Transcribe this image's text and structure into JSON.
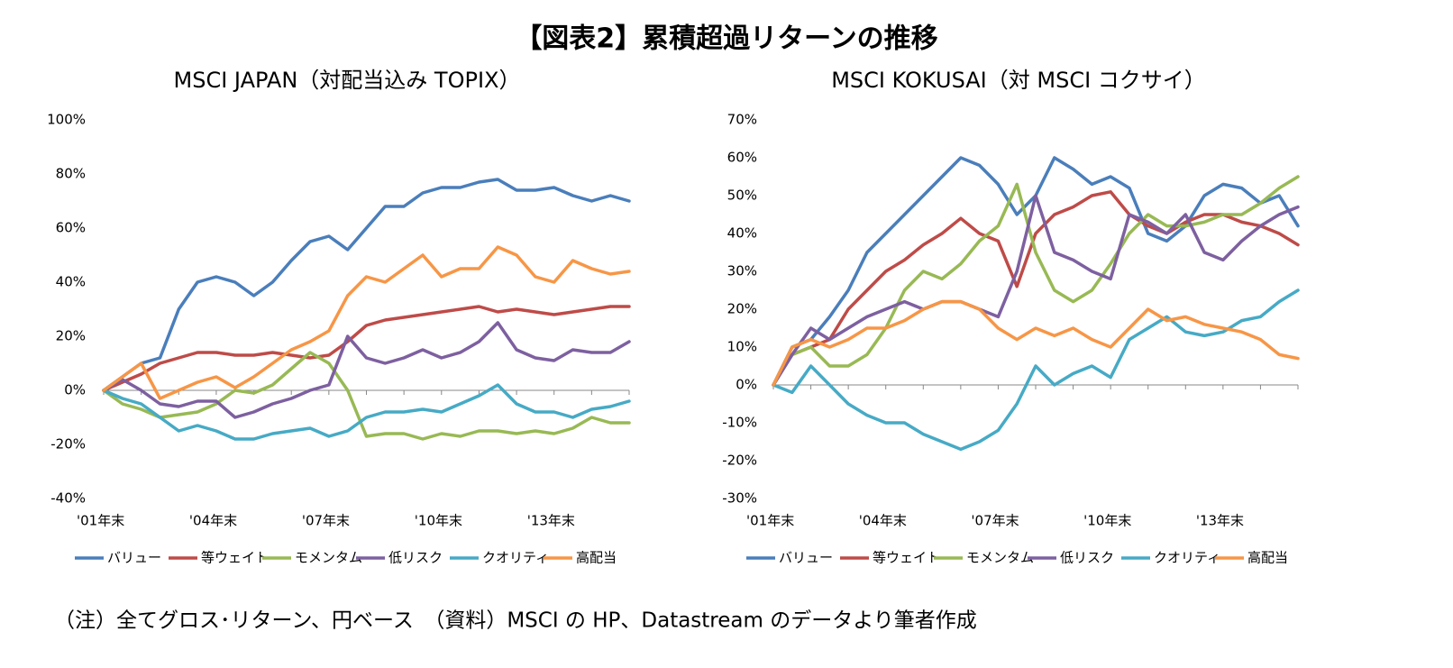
{
  "title": "【図表2】累積超過リターンの推移",
  "note": "（注）全てグロス･リターン、円ベース　（資料）MSCI の HP、Datastream のデータより筆者作成",
  "chart_data": [
    {
      "type": "line",
      "title": "MSCI JAPAN（対配当込み TOPIX）",
      "categories": [
        "'01年末",
        null,
        null,
        null,
        null,
        null,
        "'04年末",
        null,
        null,
        null,
        null,
        null,
        "'07年末",
        null,
        null,
        null,
        null,
        null,
        "'10年末",
        null,
        null,
        null,
        null,
        null,
        "'13年末",
        null,
        null,
        null,
        null
      ],
      "ylim": [
        -40,
        100
      ],
      "yticks": [
        {
          "value": -40,
          "label": "-40%"
        },
        {
          "value": -20,
          "label": "-20%"
        },
        {
          "value": 0,
          "label": "0%"
        },
        {
          "value": 20,
          "label": "20%"
        },
        {
          "value": 40,
          "label": "40%"
        },
        {
          "value": 60,
          "label": "60%"
        },
        {
          "value": 80,
          "label": "80%"
        },
        {
          "value": 100,
          "label": "100%"
        }
      ],
      "series": [
        {
          "name": "バリュー",
          "color": "#4a7ebb",
          "values": [
            0,
            5,
            10,
            12,
            30,
            40,
            42,
            40,
            35,
            40,
            48,
            55,
            57,
            52,
            60,
            68,
            68,
            73,
            75,
            75,
            77,
            78,
            74,
            74,
            75,
            72,
            70,
            72,
            70
          ]
        },
        {
          "name": "等ウェイト",
          "color": "#be4b48",
          "values": [
            0,
            3,
            6,
            10,
            12,
            14,
            14,
            13,
            13,
            14,
            13,
            12,
            13,
            18,
            24,
            26,
            27,
            28,
            29,
            30,
            31,
            29,
            30,
            29,
            28,
            29,
            30,
            31,
            31
          ]
        },
        {
          "name": "モメンタム",
          "color": "#98b954",
          "values": [
            0,
            -5,
            -7,
            -10,
            -9,
            -8,
            -5,
            0,
            -1,
            2,
            8,
            14,
            10,
            0,
            -17,
            -16,
            -16,
            -18,
            -16,
            -17,
            -15,
            -15,
            -16,
            -15,
            -16,
            -14,
            -10,
            -12,
            -12
          ]
        },
        {
          "name": "低リスク",
          "color": "#7d60a0",
          "values": [
            0,
            4,
            0,
            -5,
            -6,
            -4,
            -4,
            -10,
            -8,
            -5,
            -3,
            0,
            2,
            20,
            12,
            10,
            12,
            15,
            12,
            14,
            18,
            25,
            15,
            12,
            11,
            15,
            14,
            14,
            18
          ]
        },
        {
          "name": "クオリティ",
          "color": "#46aac5",
          "values": [
            0,
            -3,
            -5,
            -10,
            -15,
            -13,
            -15,
            -18,
            -18,
            -16,
            -15,
            -14,
            -17,
            -15,
            -10,
            -8,
            -8,
            -7,
            -8,
            -5,
            -2,
            2,
            -5,
            -8,
            -8,
            -10,
            -7,
            -6,
            -4
          ]
        },
        {
          "name": "高配当",
          "color": "#f79646",
          "values": [
            0,
            5,
            10,
            -3,
            0,
            3,
            5,
            1,
            5,
            10,
            15,
            18,
            22,
            35,
            42,
            40,
            45,
            50,
            42,
            45,
            45,
            53,
            50,
            42,
            40,
            48,
            45,
            43,
            44
          ]
        }
      ]
    },
    {
      "type": "line",
      "title": "MSCI KOKUSAI（対 MSCI コクサイ）",
      "categories": [
        "'01年末",
        null,
        null,
        null,
        null,
        null,
        "'04年末",
        null,
        null,
        null,
        null,
        null,
        "'07年末",
        null,
        null,
        null,
        null,
        null,
        "'10年末",
        null,
        null,
        null,
        null,
        null,
        "'13年末",
        null,
        null,
        null,
        null
      ],
      "ylim": [
        -30,
        70
      ],
      "yticks": [
        {
          "value": -30,
          "label": "-30%"
        },
        {
          "value": -20,
          "label": "-20%"
        },
        {
          "value": -10,
          "label": "-10%"
        },
        {
          "value": 0,
          "label": "0%"
        },
        {
          "value": 10,
          "label": "10%"
        },
        {
          "value": 20,
          "label": "20%"
        },
        {
          "value": 30,
          "label": "30%"
        },
        {
          "value": 40,
          "label": "40%"
        },
        {
          "value": 50,
          "label": "50%"
        },
        {
          "value": 60,
          "label": "60%"
        },
        {
          "value": 70,
          "label": "70%"
        }
      ],
      "series": [
        {
          "name": "バリュー",
          "color": "#4a7ebb",
          "values": [
            0,
            10,
            12,
            18,
            25,
            35,
            40,
            45,
            50,
            55,
            60,
            58,
            53,
            45,
            50,
            60,
            57,
            53,
            55,
            52,
            40,
            38,
            42,
            50,
            53,
            52,
            48,
            50,
            42
          ]
        },
        {
          "name": "等ウェイト",
          "color": "#be4b48",
          "values": [
            0,
            8,
            10,
            12,
            20,
            25,
            30,
            33,
            37,
            40,
            44,
            40,
            38,
            26,
            40,
            45,
            47,
            50,
            51,
            45,
            42,
            40,
            43,
            45,
            45,
            43,
            42,
            40,
            37
          ]
        },
        {
          "name": "モメンタム",
          "color": "#98b954",
          "values": [
            0,
            8,
            10,
            5,
            5,
            8,
            15,
            25,
            30,
            28,
            32,
            38,
            42,
            53,
            35,
            25,
            22,
            25,
            32,
            40,
            45,
            42,
            42,
            43,
            45,
            45,
            48,
            52,
            55
          ]
        },
        {
          "name": "低リスク",
          "color": "#7d60a0",
          "values": [
            0,
            8,
            15,
            12,
            15,
            18,
            20,
            22,
            20,
            22,
            22,
            20,
            18,
            30,
            50,
            35,
            33,
            30,
            28,
            45,
            43,
            40,
            45,
            35,
            33,
            38,
            42,
            45,
            47
          ]
        },
        {
          "name": "クオリティ",
          "color": "#46aac5",
          "values": [
            0,
            -2,
            5,
            0,
            -5,
            -8,
            -10,
            -10,
            -13,
            -15,
            -17,
            -15,
            -12,
            -5,
            5,
            0,
            3,
            5,
            2,
            12,
            15,
            18,
            14,
            13,
            14,
            17,
            18,
            22,
            25
          ]
        },
        {
          "name": "高配当",
          "color": "#f79646",
          "values": [
            0,
            10,
            12,
            10,
            12,
            15,
            15,
            17,
            20,
            22,
            22,
            20,
            15,
            12,
            15,
            13,
            15,
            12,
            10,
            15,
            20,
            17,
            18,
            16,
            15,
            14,
            12,
            8,
            7
          ]
        }
      ]
    }
  ]
}
